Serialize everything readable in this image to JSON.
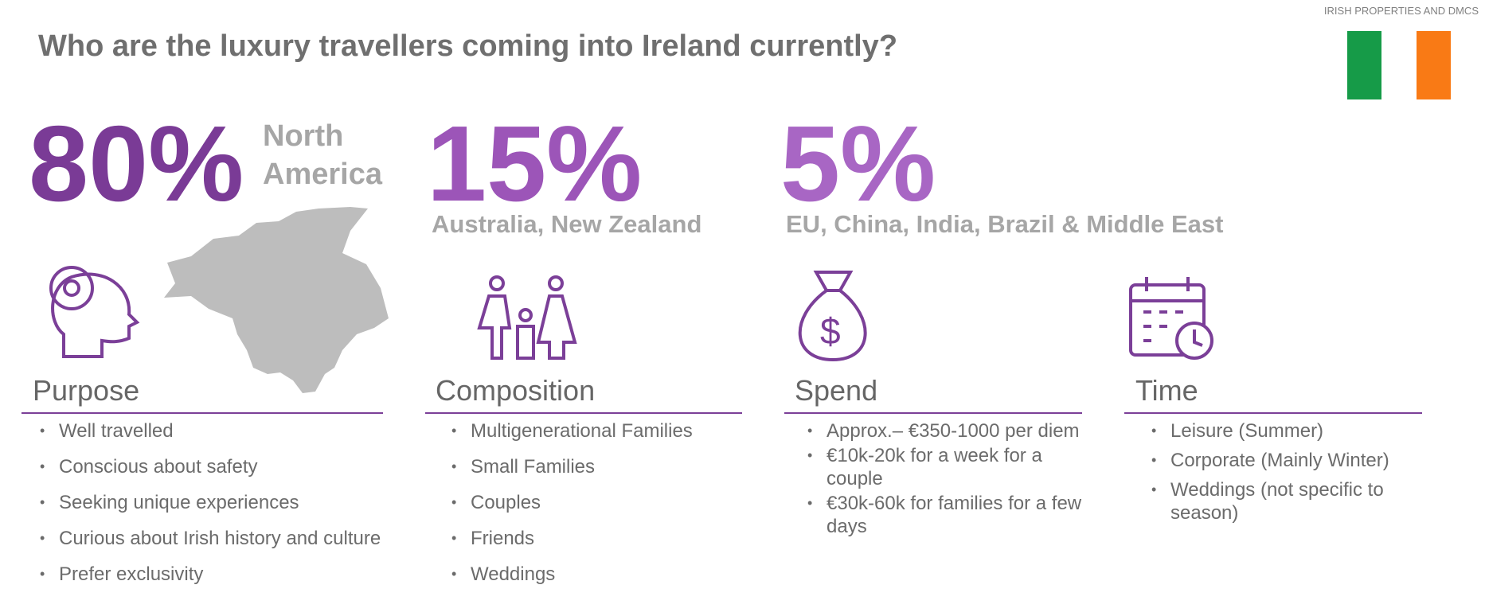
{
  "header_tag": "IRISH PROPERTIES AND DMCS",
  "title": "Who are the luxury travellers coming into Ireland currently?",
  "stats": [
    {
      "value": "80%",
      "label": "North America"
    },
    {
      "value": "15%",
      "label": "Australia, New Zealand"
    },
    {
      "value": "5%",
      "label": "EU, China, India, Brazil & Middle East"
    }
  ],
  "sections": [
    {
      "heading": "Purpose",
      "items": [
        "Well travelled",
        "Conscious about safety",
        "Seeking unique experiences",
        "Curious about Irish history and culture",
        "Prefer exclusivity"
      ]
    },
    {
      "heading": "Composition",
      "items": [
        "Multigenerational Families",
        "Small Families",
        "Couples",
        "Friends",
        "Weddings"
      ]
    },
    {
      "heading": "Spend",
      "items": [
        "Approx.– €350-1000 per diem",
        "€10k-20k for a week for a couple",
        "€30k-60k for families for a few days"
      ]
    },
    {
      "heading": "Time",
      "items": [
        "Leisure (Summer)",
        "Corporate (Mainly Winter)",
        "Weddings (not specific to season)"
      ]
    }
  ]
}
